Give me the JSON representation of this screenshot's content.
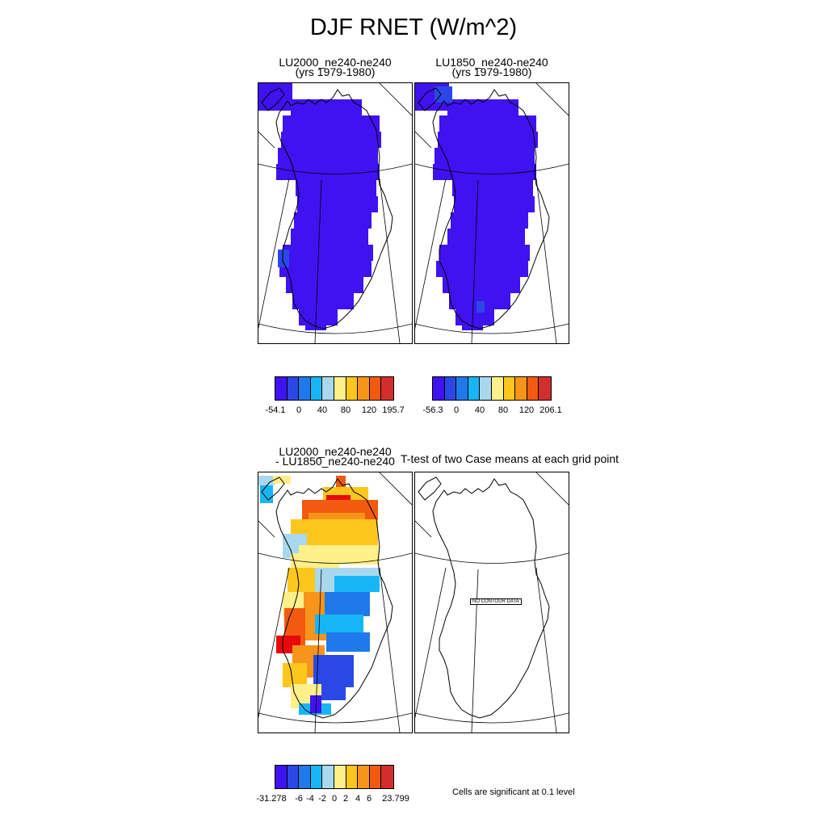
{
  "title": "DJF RNET (W/m^2)",
  "panels": {
    "lu2000": {
      "title_line1": "LU2000_ne240-ne240",
      "title_line2": "(yrs 1979-1980)"
    },
    "lu1850": {
      "title_line1": "LU1850_ne240-ne240",
      "title_line2": "(yrs 1979-1980)"
    },
    "diff": {
      "title_line1": "LU2000_ne240-ne240",
      "title_line2": "- LU1850_ne240-ne240"
    },
    "ttest": {
      "title": "T-test of two Case means at each grid point",
      "no_data_label": "NO CONTOUR DATA"
    }
  },
  "colorbars": {
    "lu2000": {
      "labels": [
        "-54.1",
        "0",
        "40",
        "80",
        "120",
        "195.7"
      ]
    },
    "lu1850": {
      "labels": [
        "-56.3",
        "0",
        "40",
        "80",
        "120",
        "206.1"
      ]
    },
    "diff": {
      "labels": [
        "-31.278",
        "-6",
        "-4",
        "-2",
        "0",
        "2",
        "4",
        "6",
        "23.799"
      ]
    }
  },
  "palette": [
    "#3f12f0",
    "#2b48e6",
    "#2079ea",
    "#16b6f6",
    "#a9d8ee",
    "#fff08a",
    "#fdc61c",
    "#f7951a",
    "#f25a10",
    "#e80a0a",
    "#d22e2e"
  ],
  "significance_note": "Cells are significant at 0.1 level"
}
